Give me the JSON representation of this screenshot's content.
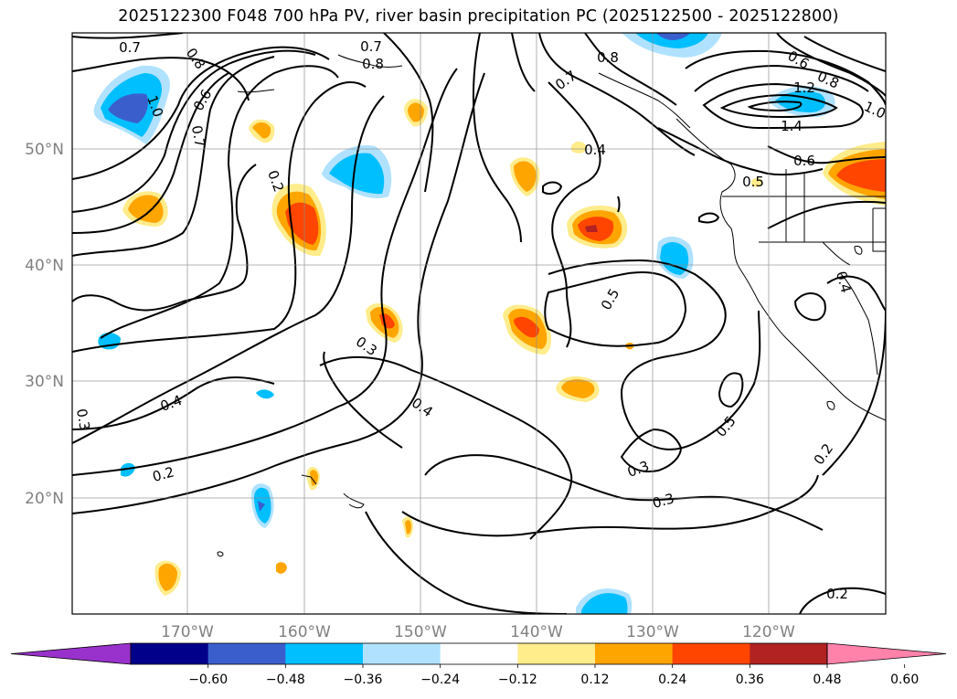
{
  "title": "2025122300 F048 700 hPa PV, river basin precipitation PC (2025122500 - 2025122800)",
  "map": {
    "lat_labels": [
      "50°N",
      "40°N",
      "30°N",
      "20°N"
    ],
    "lon_labels": [
      "170°W",
      "160°W",
      "150°W",
      "140°W",
      "130°W",
      "120°W"
    ],
    "contour_labels": [
      "0.7",
      "0.8",
      "1.0",
      "0.6",
      "0.7",
      "0.2",
      "0.7",
      "0.8",
      "0.7",
      "0.8",
      "0.4",
      "0.6",
      "0.8",
      "1.2",
      "1.0",
      "1.4",
      "0.6",
      "0.5",
      "0.4",
      "0.5",
      "0.3",
      "0.4",
      "0.4",
      "0.3",
      "0.5",
      "0.3",
      "0.3",
      "0.2",
      "0.2",
      "0.2"
    ]
  },
  "colorbar": {
    "ticks": [
      "−0.60",
      "−0.48",
      "−0.36",
      "−0.24",
      "−0.12",
      "0.12",
      "0.24",
      "0.36",
      "0.48",
      "0.60"
    ],
    "colors": [
      "#9932cc",
      "#00008b",
      "#3a5fcd",
      "#00bfff",
      "#b0e2ff",
      "#ffffff",
      "#ffec8b",
      "#ffa500",
      "#ff4500",
      "#b22222",
      "#ff82ab"
    ]
  }
}
